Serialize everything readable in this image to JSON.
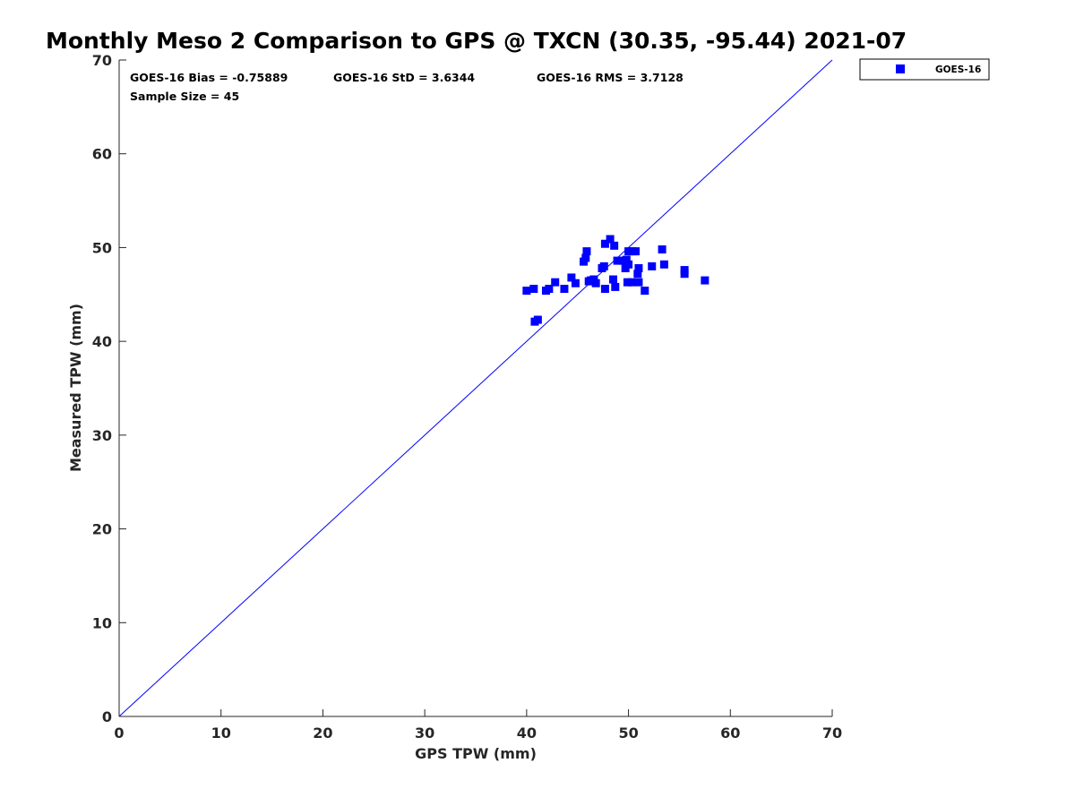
{
  "chart_data": {
    "type": "scatter",
    "title": "Monthly Meso 2 Comparison to GPS @ TXCN (30.35, -95.44) 2021-07",
    "xlabel": "GPS TPW (mm)",
    "ylabel": "Measured TPW (mm)",
    "xlim": [
      0,
      70
    ],
    "ylim": [
      0,
      70
    ],
    "xticks": [
      "0",
      "10",
      "20",
      "30",
      "40",
      "50",
      "60",
      "70"
    ],
    "yticks": [
      "0",
      "10",
      "20",
      "30",
      "40",
      "50",
      "60",
      "70"
    ],
    "grid": false,
    "legend_position": "outside-top-right",
    "stats": {
      "bias": "GOES-16 Bias = -0.75889",
      "std": "GOES-16 StD = 3.6344",
      "rms": "GOES-16 RMS = 3.7128",
      "sample": "Sample Size = 45"
    },
    "reference_line": {
      "name": "1:1 line",
      "x": [
        0,
        70
      ],
      "y": [
        0,
        70
      ],
      "color": "#0000ff"
    },
    "series": [
      {
        "name": "GOES-16",
        "color": "#0000ff",
        "marker": "square",
        "points": [
          [
            40.0,
            45.4
          ],
          [
            40.7,
            45.6
          ],
          [
            40.8,
            42.1
          ],
          [
            41.1,
            42.3
          ],
          [
            41.9,
            45.4
          ],
          [
            42.2,
            45.6
          ],
          [
            42.8,
            46.3
          ],
          [
            43.7,
            45.6
          ],
          [
            44.4,
            46.8
          ],
          [
            44.8,
            46.2
          ],
          [
            45.6,
            48.5
          ],
          [
            45.8,
            48.9
          ],
          [
            45.9,
            49.6
          ],
          [
            46.1,
            46.4
          ],
          [
            46.6,
            46.6
          ],
          [
            46.8,
            46.2
          ],
          [
            47.4,
            47.8
          ],
          [
            47.6,
            48.0
          ],
          [
            47.7,
            45.6
          ],
          [
            47.7,
            50.4
          ],
          [
            48.2,
            50.9
          ],
          [
            48.6,
            50.2
          ],
          [
            48.5,
            46.6
          ],
          [
            48.7,
            45.8
          ],
          [
            48.9,
            48.6
          ],
          [
            49.4,
            48.6
          ],
          [
            49.7,
            47.8
          ],
          [
            49.9,
            46.3
          ],
          [
            49.8,
            48.7
          ],
          [
            50.0,
            48.2
          ],
          [
            50.0,
            49.6
          ],
          [
            50.3,
            46.3
          ],
          [
            50.4,
            49.6
          ],
          [
            50.7,
            49.6
          ],
          [
            50.9,
            47.2
          ],
          [
            51.0,
            46.3
          ],
          [
            51.0,
            47.8
          ],
          [
            51.6,
            45.4
          ],
          [
            52.3,
            48.0
          ],
          [
            53.3,
            49.8
          ],
          [
            53.5,
            48.2
          ],
          [
            55.5,
            47.6
          ],
          [
            55.5,
            47.2
          ],
          [
            57.5,
            46.5
          ],
          [
            46.3,
            46.5
          ]
        ]
      }
    ]
  }
}
